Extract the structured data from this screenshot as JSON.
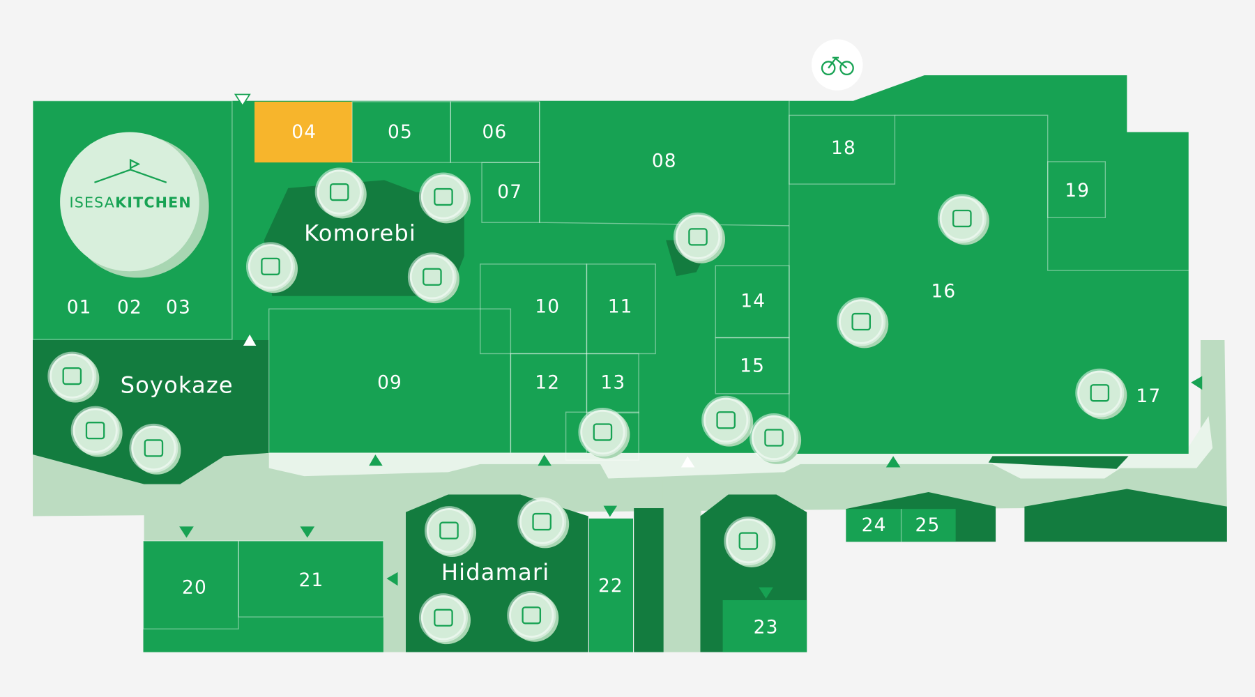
{
  "logo": {
    "prefix": "ISESA",
    "suffix": "KITCHEN"
  },
  "areas": [
    "Komorebi",
    "Soyokaze",
    "Hidamari"
  ],
  "units": [
    "01",
    "02",
    "03",
    "04",
    "05",
    "06",
    "07",
    "08",
    "09",
    "10",
    "11",
    "12",
    "13",
    "14",
    "15",
    "16",
    "17",
    "18",
    "19",
    "20",
    "21",
    "22",
    "23",
    "24",
    "25"
  ]
}
